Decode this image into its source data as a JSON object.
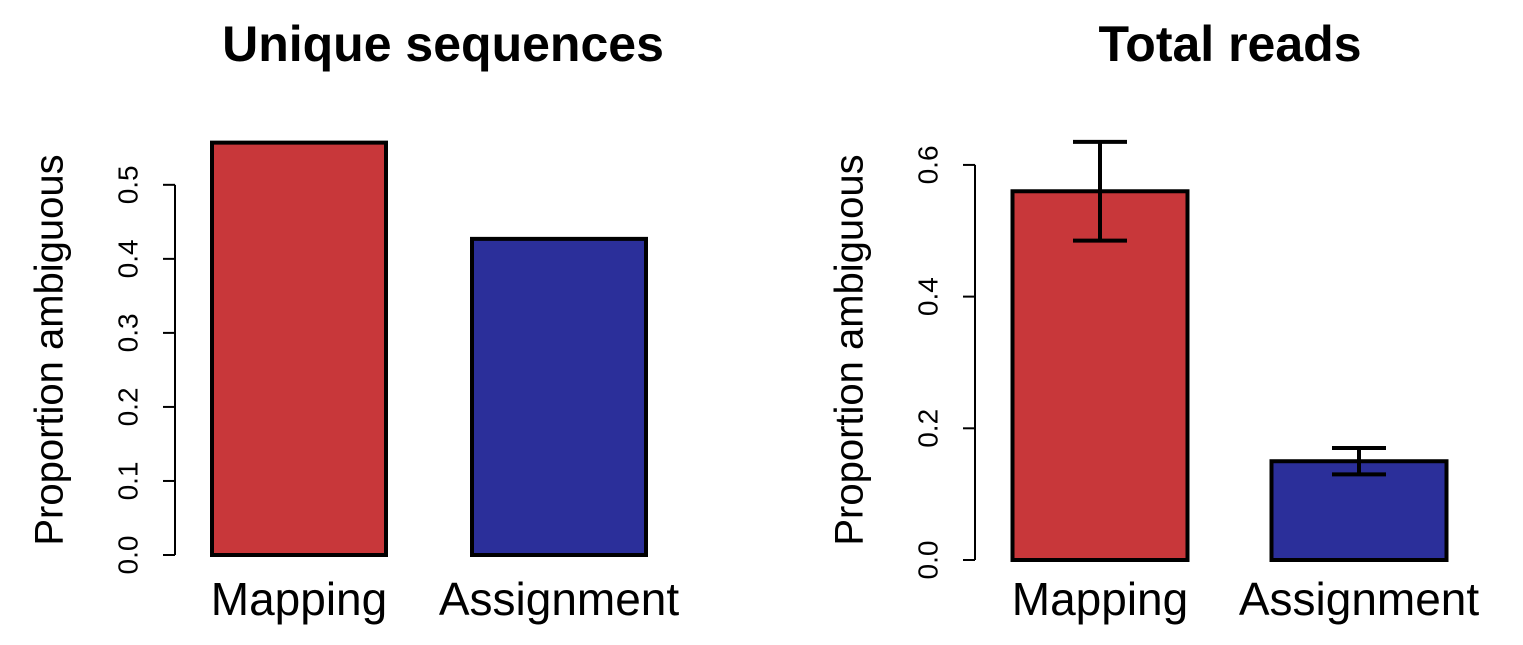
{
  "chart_data": [
    {
      "type": "bar",
      "title": "Unique sequences",
      "y_label": "Proportion ambiguous",
      "categories": [
        "Mapping",
        "Assignment"
      ],
      "values": [
        0.557,
        0.427
      ],
      "colors": [
        "#c8373a",
        "#2b2f9a"
      ],
      "ylim": [
        0,
        0.57
      ],
      "yticks": [
        {
          "value": 0,
          "label": "0.0"
        },
        0.1,
        0.2,
        0.3,
        0.4,
        0.5
      ]
    },
    {
      "type": "bar",
      "title": "Total reads",
      "y_label": "Proportion ambiguous",
      "categories": [
        "Mapping",
        "Assignment"
      ],
      "values": [
        0.56,
        0.15
      ],
      "errors": [
        0.075,
        0.02
      ],
      "colors": [
        "#c8373a",
        "#2b2f9a"
      ],
      "ylim": [
        0,
        0.65
      ],
      "yticks": [
        {
          "value": 0,
          "label": "0.0"
        },
        0.2,
        0.4,
        0.6
      ]
    }
  ]
}
